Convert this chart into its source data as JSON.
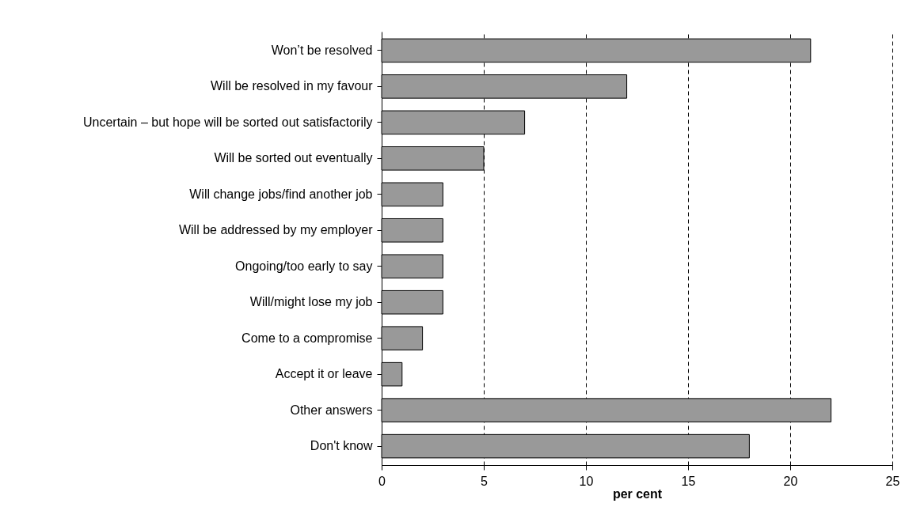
{
  "chart_data": {
    "type": "bar",
    "orientation": "horizontal",
    "xlabel": "per cent",
    "categories": [
      "Won’t be resolved",
      "Will be resolved in my favour",
      "Uncertain – but hope will be sorted out satisfactorily",
      "Will be sorted out eventually",
      "Will change jobs/find another job",
      "Will be addressed by my employer",
      "Ongoing/too early to say",
      "Will/might lose my job",
      "Come to a compromise",
      "Accept it or leave",
      "Other answers",
      "Don't know"
    ],
    "values": [
      21,
      12,
      7,
      5,
      3,
      3,
      3,
      3,
      2,
      1,
      22,
      18
    ],
    "color": "#999999",
    "xlim": [
      0,
      25
    ],
    "xticks": [
      0,
      5,
      10,
      15,
      20,
      25
    ],
    "grid": "x",
    "line_style": "dashed"
  }
}
